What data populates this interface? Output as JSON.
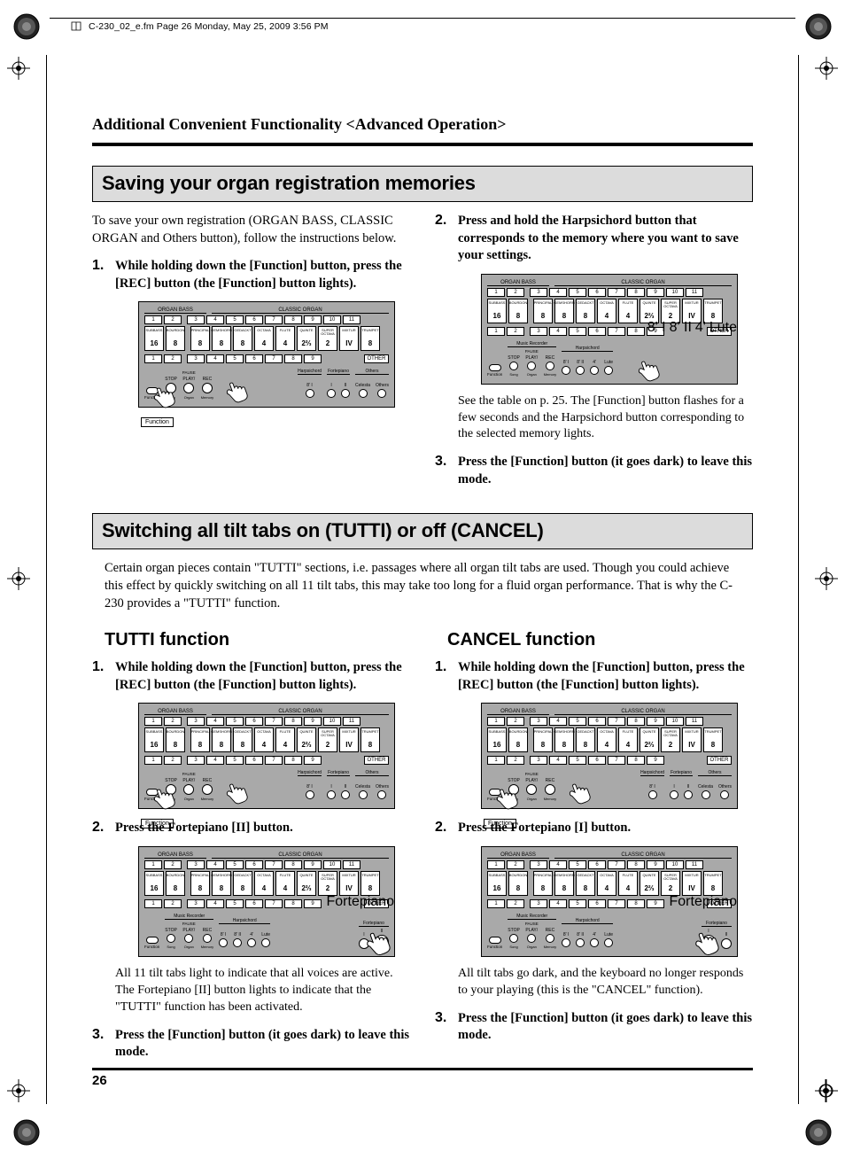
{
  "meta": {
    "header": "C-230_02_e.fm  Page 26  Monday, May 25, 2009  3:56 PM"
  },
  "chapter_title": "Additional Convenient Functionality <Advanced Operation>",
  "section1": {
    "heading": "Saving your organ registration memories",
    "intro": "To save your own registration (ORGAN BASS, CLASSIC ORGAN and Others button), follow the instructions below.",
    "left_steps": [
      {
        "text": "While holding down the [Function] button, press the [REC] button (the [Function] button lights)."
      }
    ],
    "right_steps": [
      {
        "text": "Press and hold the Harpsichord button that corresponds to the memory where you want to save your settings.",
        "body": "See the table on p. 25. The [Function] button flashes for a few seconds and the Harpsichord button corresponding to the selected memory lights."
      },
      {
        "text": "Press the [Function] button (it goes dark) to leave this mode."
      }
    ]
  },
  "section2": {
    "heading": "Switching all tilt tabs on (TUTTI) or off (CANCEL)",
    "intro": "Certain organ pieces contain \"TUTTI\" sections, i.e. passages where all organ tilt tabs are used. Though you could achieve this effect by quickly switching on all 11 tilt tabs, this may take too long for a fluid organ performance. That is why the C-230 provides a \"TUTTI\" function.",
    "tutti": {
      "title": "TUTTI function",
      "steps": [
        {
          "text": "While holding down the [Function] button, press the [REC] button (the [Function] button lights)."
        },
        {
          "text": "Press the Fortepiano [II] button.",
          "body": "All 11 tilt tabs light to indicate that all voices are active. The Fortepiano [II] button lights to indicate that the \"TUTTI\" function has been activated."
        },
        {
          "text": "Press the [Function] button (it goes dark) to leave this mode."
        }
      ]
    },
    "cancel": {
      "title": "CANCEL function",
      "steps": [
        {
          "text": "While holding down the [Function] button, press the [REC] button (the [Function] button lights)."
        },
        {
          "text": "Press the Fortepiano [I] button.",
          "body": "All tilt tabs go dark, and the keyboard no longer responds to your playing (this is the \"CANCEL\" function)."
        },
        {
          "text": "Press the [Function] button (it goes dark) to leave this mode."
        }
      ]
    }
  },
  "page_number": "26",
  "panel": {
    "colors": {
      "bg": "#a9a9a9",
      "tab_bg": "#ffffff",
      "border": "#000000"
    },
    "titles": {
      "organ_bass": "ORGAN BASS",
      "classic_organ": "CLASSIC ORGAN",
      "other": "OTHER"
    },
    "bass_nums": [
      "1",
      "2"
    ],
    "organ_nums": [
      "3",
      "4",
      "5",
      "6",
      "7",
      "8",
      "9",
      "10",
      "11"
    ],
    "bass_tabs": [
      {
        "top": "SUBBASS",
        "bot": "16"
      },
      {
        "top": "BOURDON",
        "bot": "8"
      }
    ],
    "organ_tabs": [
      {
        "top": "PRINCIPAL",
        "bot": "8"
      },
      {
        "top": "GEMSHORN",
        "bot": "8"
      },
      {
        "top": "GEDACKT",
        "bot": "8"
      },
      {
        "top": "OCTAVA",
        "bot": "4"
      },
      {
        "top": "FLUTE",
        "bot": "4"
      },
      {
        "top": "QUINTE",
        "bot": "2⅔"
      },
      {
        "top": "SUPER OCTAVA",
        "bot": "2"
      },
      {
        "top": "MIXTUR",
        "bot": "IV"
      },
      {
        "top": "TRUMPET",
        "bot": "8"
      }
    ],
    "lower_nums_left": [
      "1",
      "2"
    ],
    "lower_nums_right": [
      "3",
      "4",
      "5",
      "6",
      "7",
      "8",
      "9"
    ],
    "recorder": {
      "title": "Music Recorder",
      "buttons": [
        {
          "lbl": "STOP",
          "sub": "Song"
        },
        {
          "lbl": "PLAY/",
          "lbl2": "PAUSE",
          "sub": "Organ"
        },
        {
          "lbl": "REC",
          "sub": "Memory"
        }
      ],
      "dual": {
        "lbl": "Function",
        "lbl2": "Demo"
      }
    },
    "harpsichord": {
      "title": "Harpsichord",
      "buttons": [
        {
          "lbl": "8' I"
        },
        {
          "lbl": "8' II"
        },
        {
          "lbl": "4'"
        },
        {
          "lbl": "Lute"
        }
      ]
    },
    "fortepiano": {
      "title": "Fortepiano",
      "buttons": [
        {
          "lbl": "I"
        },
        {
          "lbl": "II"
        }
      ]
    },
    "others": {
      "title": "Others",
      "buttons": [
        {
          "lbl": "Celesta"
        },
        {
          "lbl": "Others"
        }
      ]
    }
  },
  "callouts": {
    "function": "Function",
    "fortepiano": "Fortepiano",
    "harps_top": [
      "8' I",
      "8' II",
      "4'",
      "Lute"
    ]
  }
}
